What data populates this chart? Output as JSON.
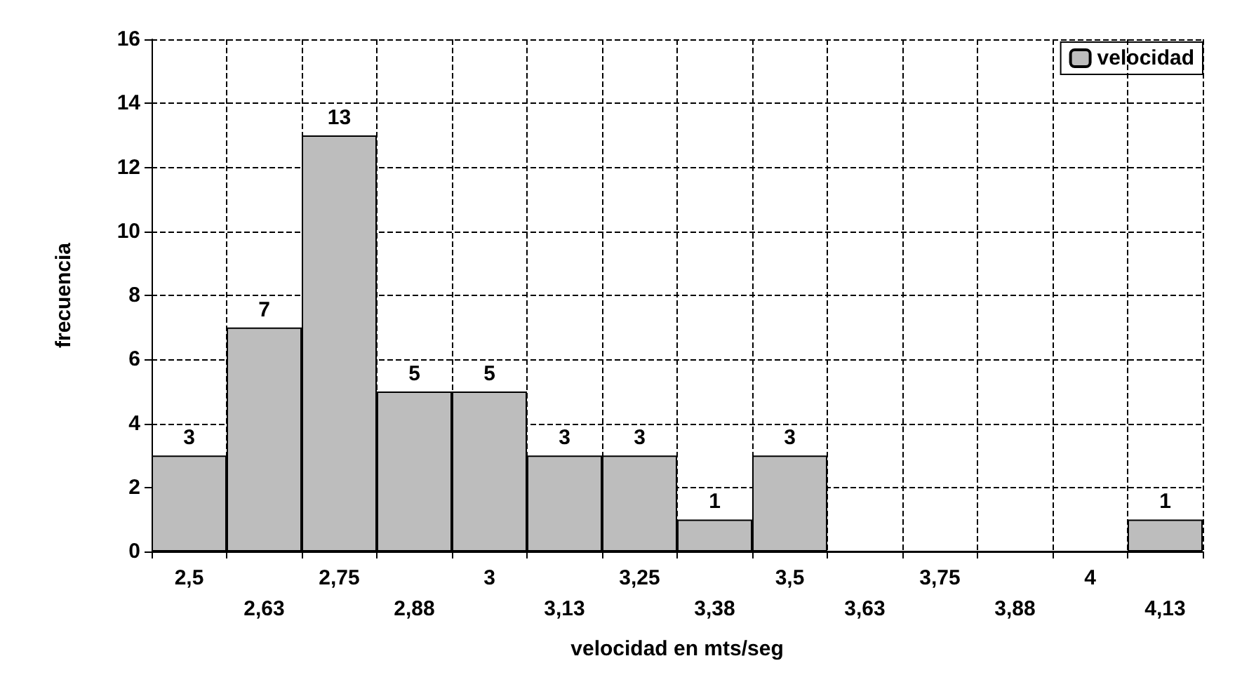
{
  "chart_data": {
    "type": "bar",
    "xlabel": "velocidad en mts/seg",
    "ylabel": "frecuencia",
    "categories": [
      "2,5",
      "2,63",
      "2,75",
      "2,88",
      "3",
      "3,13",
      "3,25",
      "3,38",
      "3,5",
      "3,63",
      "3,75",
      "3,88",
      "4",
      "4,13"
    ],
    "series": [
      {
        "name": "velocidad",
        "color": "#bdbdbd",
        "values": [
          3,
          7,
          13,
          5,
          5,
          3,
          3,
          1,
          3,
          0,
          0,
          0,
          0,
          1
        ],
        "value_labels": [
          "3",
          "7",
          "13",
          "5",
          "5",
          "3",
          "3",
          "1",
          "3",
          null,
          null,
          null,
          null,
          "1"
        ]
      }
    ],
    "ylim": [
      0,
      16
    ],
    "yticks": [
      0,
      2,
      4,
      6,
      8,
      10,
      12,
      14,
      16
    ],
    "grid": true,
    "legend": "top right",
    "line_style": "dashed"
  }
}
